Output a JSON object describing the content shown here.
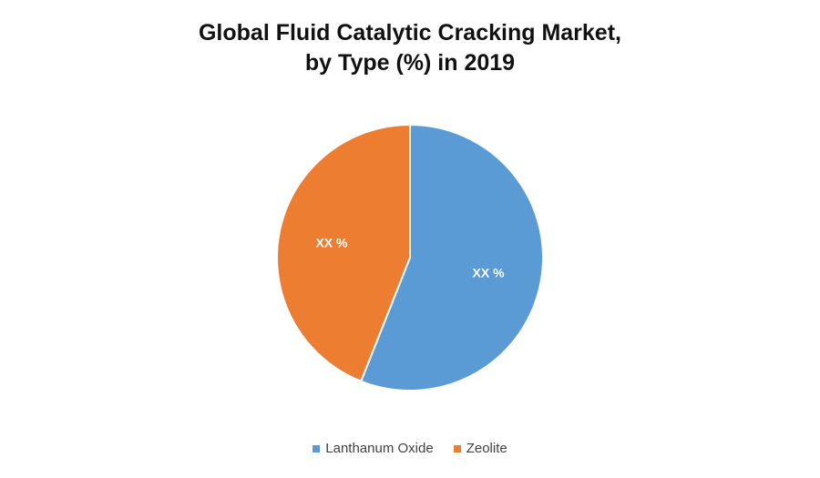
{
  "chart_data": {
    "type": "pie",
    "title_lines": [
      "Global Fluid Catalytic Cracking Market,",
      "by Type (%) in 2019"
    ],
    "slices": [
      {
        "name": "Lanthanum Oxide",
        "value": 56,
        "label": "XX %",
        "color": "#5B9BD5"
      },
      {
        "name": "Zeolite",
        "value": 44,
        "label": "XX %",
        "color": "#ED7D31"
      }
    ],
    "start_angle_deg": 0,
    "direction": "clockwise",
    "legend_position": "bottom"
  }
}
